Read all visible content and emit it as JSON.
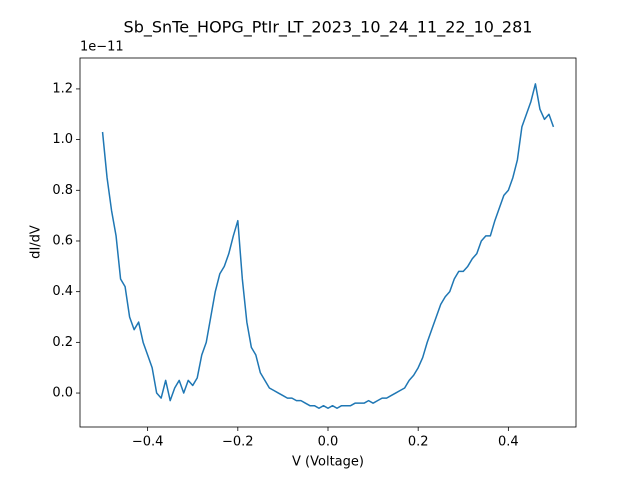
{
  "chart_data": {
    "type": "line",
    "title": "Sb_SnTe_HOPG_PtIr_LT_2023_10_24_11_22_10_281",
    "x_label": "V (Voltage)",
    "y_label": "dI/dV",
    "y_offset_text": "1e−11",
    "color": "#1f77b4",
    "x": [
      -0.5,
      -0.49,
      -0.48,
      -0.47,
      -0.46,
      -0.45,
      -0.44,
      -0.43,
      -0.42,
      -0.41,
      -0.4,
      -0.39,
      -0.38,
      -0.37,
      -0.36,
      -0.35,
      -0.34,
      -0.33,
      -0.32,
      -0.31,
      -0.3,
      -0.29,
      -0.28,
      -0.27,
      -0.26,
      -0.25,
      -0.24,
      -0.23,
      -0.22,
      -0.21,
      -0.2,
      -0.19,
      -0.18,
      -0.17,
      -0.16,
      -0.15,
      -0.14,
      -0.13,
      -0.12,
      -0.11,
      -0.1,
      -0.09,
      -0.08,
      -0.07,
      -0.06,
      -0.05,
      -0.04,
      -0.03,
      -0.02,
      -0.01,
      0,
      0.01,
      0.02,
      0.03,
      0.04,
      0.05,
      0.06,
      0.07,
      0.08,
      0.09,
      0.1,
      0.11,
      0.12,
      0.13,
      0.14,
      0.15,
      0.16,
      0.17,
      0.18,
      0.19,
      0.2,
      0.21,
      0.22,
      0.23,
      0.24,
      0.25,
      0.26,
      0.27,
      0.28,
      0.29,
      0.3,
      0.31,
      0.32,
      0.33,
      0.34,
      0.35,
      0.36,
      0.37,
      0.38,
      0.39,
      0.4,
      0.41,
      0.42,
      0.43,
      0.44,
      0.45,
      0.46,
      0.47,
      0.48,
      0.49,
      0.5
    ],
    "values": [
      1.03,
      0.85,
      0.72,
      0.62,
      0.45,
      0.42,
      0.3,
      0.25,
      0.28,
      0.2,
      0.15,
      0.1,
      0.0,
      -0.02,
      0.05,
      -0.03,
      0.02,
      0.05,
      0.0,
      0.05,
      0.03,
      0.06,
      0.15,
      0.2,
      0.3,
      0.4,
      0.47,
      0.5,
      0.55,
      0.62,
      0.68,
      0.45,
      0.28,
      0.18,
      0.15,
      0.08,
      0.05,
      0.02,
      0.01,
      0.0,
      -0.01,
      -0.02,
      -0.02,
      -0.03,
      -0.03,
      -0.04,
      -0.05,
      -0.05,
      -0.06,
      -0.05,
      -0.06,
      -0.05,
      -0.06,
      -0.05,
      -0.05,
      -0.05,
      -0.04,
      -0.04,
      -0.04,
      -0.03,
      -0.04,
      -0.03,
      -0.02,
      -0.02,
      -0.01,
      0.0,
      0.01,
      0.02,
      0.05,
      0.07,
      0.1,
      0.14,
      0.2,
      0.25,
      0.3,
      0.35,
      0.38,
      0.4,
      0.45,
      0.48,
      0.48,
      0.5,
      0.53,
      0.55,
      0.6,
      0.62,
      0.62,
      0.68,
      0.73,
      0.78,
      0.8,
      0.85,
      0.92,
      1.05,
      1.1,
      1.15,
      1.22,
      1.12,
      1.08,
      1.1,
      1.05
    ],
    "xlim": [
      -0.55,
      0.55
    ],
    "ylim": [
      -0.134,
      1.322
    ],
    "xticks": [
      {
        "value": -0.4,
        "label": "−0.4"
      },
      {
        "value": -0.2,
        "label": "−0.2"
      },
      {
        "value": 0,
        "label": "0.0"
      },
      0.2,
      0.4
    ],
    "yticks": [
      {
        "value": 0,
        "label": "0.0"
      },
      0.2,
      0.4,
      0.6,
      0.8,
      {
        "value": 1,
        "label": "1.0"
      },
      1.2
    ]
  }
}
